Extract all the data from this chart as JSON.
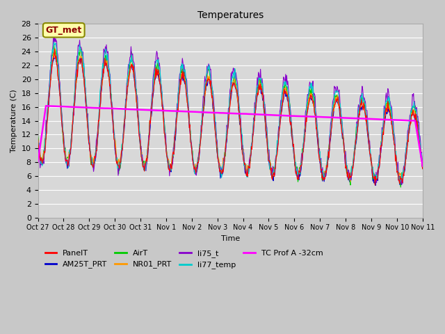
{
  "title": "Temperatures",
  "xlabel": "Time",
  "ylabel": "Temperature (C)",
  "ylim": [
    0,
    28
  ],
  "yticks": [
    0,
    2,
    4,
    6,
    8,
    10,
    12,
    14,
    16,
    18,
    20,
    22,
    24,
    26,
    28
  ],
  "xtick_positions": [
    0,
    1,
    2,
    3,
    4,
    5,
    6,
    7,
    8,
    9,
    10,
    11,
    12,
    13,
    14,
    15
  ],
  "xtick_labels": [
    "Oct 27",
    "Oct 28",
    "Oct 29",
    "Oct 30",
    "Oct 31",
    "Nov 1",
    "Nov 2",
    "Nov 3",
    "Nov 4",
    "Nov 5",
    "Nov 6",
    "Nov 7",
    "Nov 8",
    "Nov 9",
    "Nov 10",
    "Nov 11"
  ],
  "series_colors": {
    "PanelT": "#ff0000",
    "AM25T_PRT": "#0000cc",
    "AirT": "#00cc00",
    "NR01_PRT": "#ff9900",
    "li75_t": "#8800cc",
    "li77_temp": "#00cccc",
    "TC_Prof": "#ff00ff"
  },
  "gt_met_box_color": "#ffffaa",
  "gt_met_text_color": "#8b0000",
  "gt_met_border_color": "#888800",
  "plot_bg_color": "#d8d8d8",
  "grid_color": "#ffffff",
  "n_days": 15,
  "pts_per_day": 48
}
